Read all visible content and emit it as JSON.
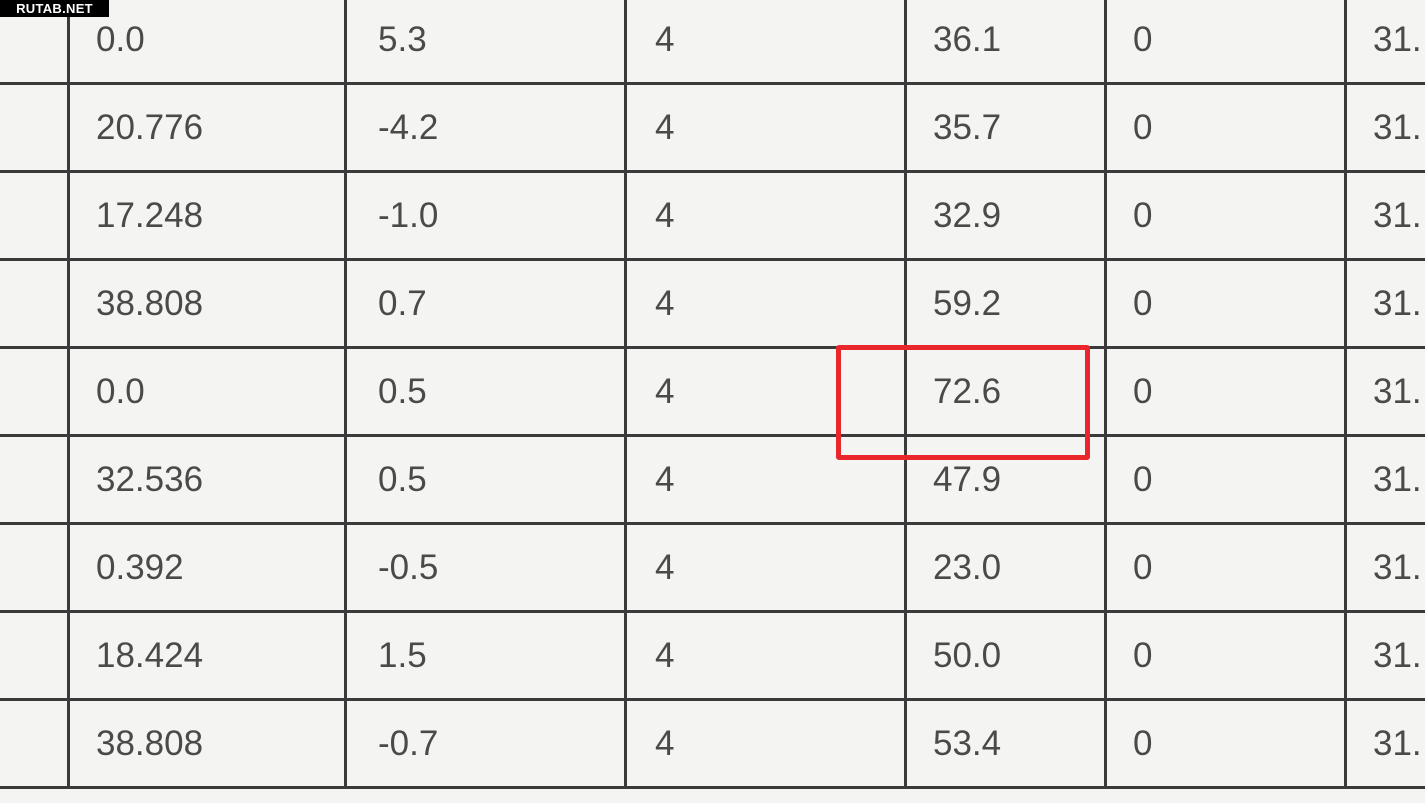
{
  "watermark": "RUTAB.NET",
  "highlight_color": "#e8262b",
  "highlighted_cell": {
    "row": 4,
    "column": 4,
    "value": "72.6"
  },
  "table": {
    "rows": [
      [
        "0.0",
        "5.3",
        "4",
        "36.1",
        "0",
        "31."
      ],
      [
        "20.776",
        "-4.2",
        "4",
        "35.7",
        "0",
        "31."
      ],
      [
        "17.248",
        "-1.0",
        "4",
        "32.9",
        "0",
        "31."
      ],
      [
        "38.808",
        "0.7",
        "4",
        "59.2",
        "0",
        "31."
      ],
      [
        "0.0",
        "0.5",
        "4",
        "72.6",
        "0",
        "31."
      ],
      [
        "32.536",
        "0.5",
        "4",
        "47.9",
        "0",
        "31."
      ],
      [
        "0.392",
        "-0.5",
        "4",
        "23.0",
        "0",
        "31."
      ],
      [
        "18.424",
        "1.5",
        "4",
        "50.0",
        "0",
        "31."
      ],
      [
        "38.808",
        "-0.7",
        "4",
        "53.4",
        "0",
        "31."
      ]
    ]
  }
}
